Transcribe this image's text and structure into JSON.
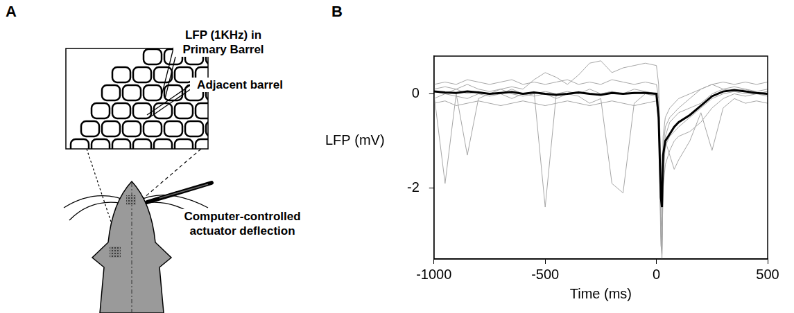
{
  "panel_a": {
    "label": "A",
    "recording_label": "LFP (1KHz) in Primary Barrel",
    "adjacent_label": "Adjacent barrel",
    "stimulus_label": "Computer-controlled actuator deflection"
  },
  "chart_data": {
    "panel_label": "B",
    "type": "line",
    "x_label": "Time (ms)",
    "y_label": "LFP (mV)",
    "x": [
      -1000,
      -950,
      -900,
      -850,
      -800,
      -750,
      -700,
      -650,
      -600,
      -550,
      -500,
      -450,
      -400,
      -350,
      -300,
      -250,
      -200,
      -150,
      -100,
      -50,
      0,
      10,
      20,
      25,
      30,
      40,
      60,
      80,
      100,
      150,
      200,
      250,
      300,
      350,
      400,
      450,
      500
    ],
    "series": [
      {
        "color": "#a6a6a6",
        "values": [
          0.1,
          0.15,
          0.1,
          0.2,
          0.1,
          0.05,
          0.1,
          0.15,
          0.1,
          0.3,
          0.45,
          0.35,
          0.2,
          0.4,
          0.65,
          0.7,
          0.45,
          0.55,
          0.6,
          0.65,
          0.6,
          0.2,
          -1.5,
          -2.8,
          -1.2,
          -0.7,
          -0.5,
          -0.4,
          -0.3,
          -0.1,
          0.1,
          0.2,
          0.1,
          0.15,
          0.1,
          0.05,
          0.1
        ]
      },
      {
        "color": "#a6a6a6",
        "values": [
          0,
          -1.9,
          0,
          -1.3,
          -0.1,
          0,
          0.1,
          0,
          -0.05,
          0,
          0.05,
          0,
          0,
          0.05,
          0,
          0,
          0.05,
          0,
          0,
          0.05,
          0,
          -0.4,
          -3.0,
          -3.5,
          -1.8,
          -1.1,
          -0.9,
          -0.8,
          -0.7,
          -0.5,
          -0.3,
          -0.1,
          0,
          0.05,
          0,
          0,
          0.05
        ]
      },
      {
        "color": "#a6a6a6",
        "values": [
          0.05,
          0,
          0.1,
          0,
          0.05,
          0,
          0,
          0.1,
          0,
          0.05,
          -2.4,
          0,
          0.05,
          0,
          0.1,
          0,
          0.05,
          0,
          0.1,
          0.05,
          0,
          -0.2,
          -2.6,
          -3.1,
          -1.4,
          -0.9,
          -0.6,
          -0.5,
          -0.4,
          -0.3,
          -0.2,
          0,
          0.1,
          0.05,
          0.1,
          0,
          0.05
        ]
      },
      {
        "color": "#a6a6a6",
        "values": [
          -0.1,
          0,
          -0.05,
          -0.1,
          0,
          -0.05,
          0,
          -0.1,
          0,
          -0.05,
          0,
          -0.1,
          0,
          -0.05,
          -0.2,
          -0.1,
          -1.9,
          -2.1,
          -0.2,
          0,
          -0.05,
          -0.5,
          -2.9,
          -3.3,
          -2.0,
          -1.5,
          -1.2,
          -1.0,
          -0.9,
          -0.8,
          -0.6,
          -0.3,
          -0.1,
          0,
          -0.05,
          0,
          -0.05
        ]
      },
      {
        "color": "#a6a6a6",
        "values": [
          0.2,
          0.25,
          0.2,
          0.3,
          0.25,
          0.2,
          0.25,
          0.3,
          0.2,
          0.25,
          0.2,
          0.25,
          0.3,
          0.2,
          0.25,
          0.2,
          0.3,
          0.25,
          0.2,
          0.25,
          0.2,
          -0.1,
          -1.8,
          -2.2,
          -0.9,
          -0.5,
          -0.3,
          -0.2,
          -0.1,
          0,
          0.1,
          0.2,
          0.25,
          0.2,
          0.25,
          0.2,
          0.25
        ]
      },
      {
        "color": "#a6a6a6",
        "values": [
          -0.2,
          -0.15,
          -0.25,
          -0.2,
          -0.15,
          -0.2,
          -0.25,
          -0.2,
          -0.15,
          -0.2,
          -0.25,
          -0.2,
          -0.15,
          -0.2,
          -0.25,
          -0.2,
          -0.15,
          -0.2,
          -0.25,
          -0.2,
          -0.15,
          -0.6,
          -3.2,
          -3.4,
          -1.5,
          -1.0,
          -1.3,
          -1.6,
          -1.4,
          -1.0,
          -0.4,
          -1.2,
          -0.3,
          -0.1,
          -0.2,
          -0.15,
          -0.2
        ]
      },
      {
        "color": "#000000",
        "values": [
          0.05,
          0.03,
          0.02,
          0.05,
          0.03,
          0,
          0.02,
          0.04,
          0,
          0.03,
          0,
          -0.02,
          0,
          0.03,
          0,
          -0.02,
          0.02,
          0,
          0.02,
          0.02,
          0,
          -0.5,
          -2.2,
          -2.4,
          -1.3,
          -1.0,
          -0.85,
          -0.7,
          -0.6,
          -0.45,
          -0.25,
          -0.05,
          0.05,
          0.08,
          0.05,
          0.02,
          0
        ]
      }
    ],
    "xlim": [
      -1000,
      500
    ],
    "xticks": [
      -1000,
      -500,
      0,
      500
    ],
    "ylim": [
      -3.5,
      0.8
    ],
    "yticks": [
      -2,
      0
    ],
    "grid": false
  }
}
